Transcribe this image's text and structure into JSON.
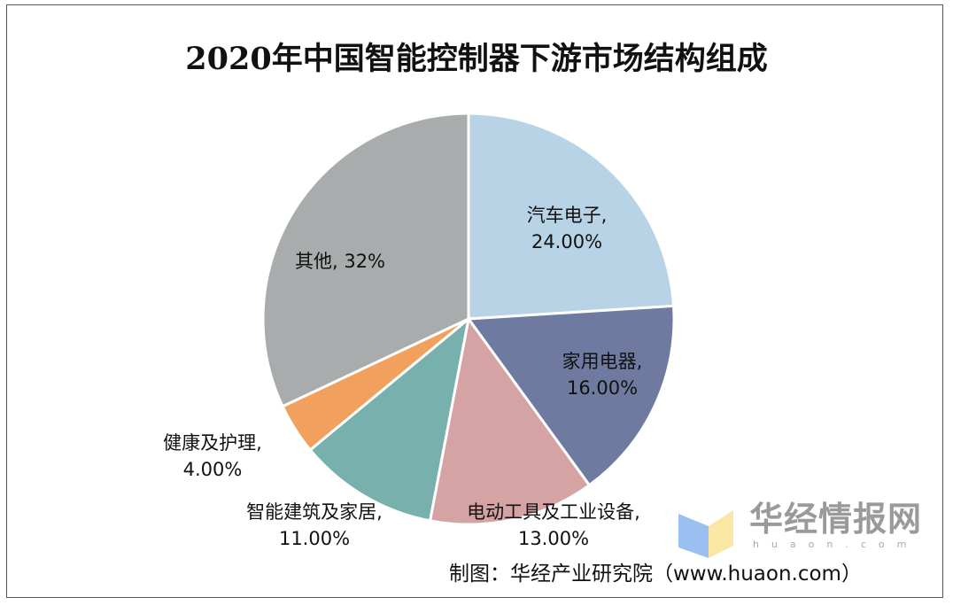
{
  "chart_data": {
    "type": "pie",
    "title": "2020年中国智能控制器下游市场结构组成",
    "start_angle": "top",
    "direction": "clockwise",
    "slices": [
      {
        "name": "汽车电子",
        "value": 24,
        "label": "24.00%",
        "color": "#b8d3e6"
      },
      {
        "name": "家用电器",
        "value": 16,
        "label": "16.00%",
        "color": "#6e7a9f"
      },
      {
        "name": "电动工具及工业设备",
        "value": 13,
        "label": "13.00%",
        "color": "#d6a3a4"
      },
      {
        "name": "智能建筑及家居",
        "value": 11,
        "label": "11.00%",
        "color": "#78b0ae"
      },
      {
        "name": "健康及护理",
        "value": 4,
        "label": "4.00%",
        "color": "#f1a05e"
      },
      {
        "name": "其他",
        "value": 32,
        "label": "32%",
        "color": "#a9acac"
      }
    ]
  },
  "source": "制图：华经产业研究院（www.huaon.com）",
  "watermark": {
    "name": "华经情报网",
    "sub": "huaon.com"
  }
}
